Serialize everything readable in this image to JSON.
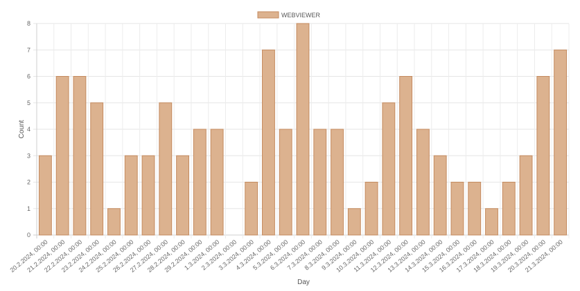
{
  "chart_data": {
    "type": "bar",
    "title": "",
    "xlabel": "Day",
    "ylabel": "Count",
    "ylim": [
      0,
      8
    ],
    "yticks": [
      0,
      1,
      2,
      3,
      4,
      5,
      6,
      7,
      8
    ],
    "grid": true,
    "legend_position": "top",
    "categories": [
      "20.2.2024, 00:00",
      "21.2.2024, 00:00",
      "22.2.2024, 00:00",
      "23.2.2024, 00:00",
      "24.2.2024, 00:00",
      "25.2.2024, 00:00",
      "26.2.2024, 00:00",
      "27.2.2024, 00:00",
      "28.2.2024, 00:00",
      "29.2.2024, 00:00",
      "1.3.2024, 00:00",
      "2.3.2024, 00:00",
      "3.3.2024, 00:00",
      "4.3.2024, 00:00",
      "5.3.2024, 00:00",
      "6.3.2024, 00:00",
      "7.3.2024, 00:00",
      "8.3.2024, 00:00",
      "9.3.2024, 00:00",
      "10.3.2024, 00:00",
      "11.3.2024, 00:00",
      "12.3.2024, 00:00",
      "13.3.2024, 00:00",
      "14.3.2024, 00:00",
      "15.3.2024, 00:00",
      "16.3.2024, 00:00",
      "17.3.2024, 00:00",
      "18.3.2024, 00:00",
      "19.3.2024, 00:00",
      "20.3.2024, 00:00",
      "21.3.2024, 00:00"
    ],
    "series": [
      {
        "name": "WEBVIEWER",
        "color": "#dcb28f",
        "border_color": "#c48a5e",
        "values": [
          3,
          6,
          6,
          5,
          1,
          3,
          3,
          5,
          3,
          4,
          4,
          0,
          2,
          7,
          4,
          8,
          4,
          4,
          1,
          2,
          5,
          6,
          4,
          3,
          2,
          2,
          1,
          2,
          3,
          6,
          7
        ]
      }
    ]
  }
}
